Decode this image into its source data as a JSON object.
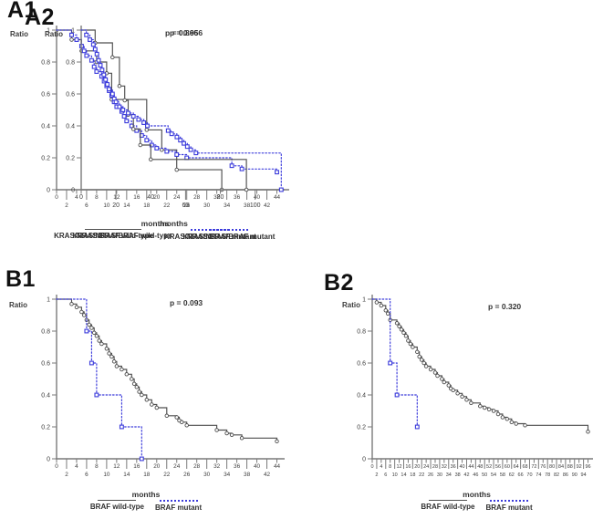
{
  "colors": {
    "wild_type": "#4f4f4f",
    "mutant": "#3b3bdb",
    "axis": "#7a7a7a",
    "text": "#3c3c3c"
  },
  "chart_data": [
    {
      "panel": "A1",
      "type": "line",
      "subtype": "kaplan-meier-step",
      "p_value": "p = 0.866",
      "xlabel": "months",
      "ylabel": "Ratio",
      "xlim": [
        0,
        45
      ],
      "ylim": [
        0,
        1
      ],
      "xticks": [
        0,
        2,
        4,
        6,
        8,
        10,
        12,
        14,
        16,
        18,
        20,
        22,
        24,
        26,
        28,
        30,
        32,
        34,
        36,
        38,
        40,
        42,
        44
      ],
      "yticks": [
        1,
        0.8,
        0.6,
        0.4,
        0.2,
        0
      ],
      "grid": false,
      "legend_position": "bottom",
      "series": [
        {
          "name": "KRAS/NRAS/BRAF wild-type",
          "line": "solid",
          "marker": "circle",
          "color": "wild_type",
          "points": [
            [
              0,
              1
            ],
            [
              3,
              0.94
            ],
            [
              5,
              0.87
            ],
            [
              8,
              0.8
            ],
            [
              10,
              0.73
            ],
            [
              11,
              0.565
            ],
            [
              18,
              0.375
            ],
            [
              21,
              0.25
            ],
            [
              24,
              0.125
            ],
            [
              33,
              0
            ]
          ]
        },
        {
          "name": "KRAS/NRAS/BRAF mutant",
          "line": "dotted",
          "marker": "square",
          "color": "mutant",
          "points": [
            [
              0,
              1
            ],
            [
              3,
              0.97
            ],
            [
              4,
              0.94
            ],
            [
              5,
              0.9
            ],
            [
              5.5,
              0.87
            ],
            [
              6,
              0.84
            ],
            [
              7,
              0.81
            ],
            [
              7.5,
              0.77
            ],
            [
              8,
              0.74
            ],
            [
              9,
              0.71
            ],
            [
              9.5,
              0.68
            ],
            [
              10,
              0.65
            ],
            [
              10.5,
              0.62
            ],
            [
              11,
              0.59
            ],
            [
              11.5,
              0.55
            ],
            [
              12,
              0.52
            ],
            [
              13,
              0.49
            ],
            [
              13.5,
              0.46
            ],
            [
              14,
              0.43
            ],
            [
              15,
              0.4
            ],
            [
              16,
              0.37
            ],
            [
              17,
              0.34
            ],
            [
              18,
              0.31
            ],
            [
              19,
              0.28
            ],
            [
              20,
              0.26
            ],
            [
              22,
              0.24
            ],
            [
              24,
              0.22
            ],
            [
              26,
              0.2
            ],
            [
              35,
              0.15
            ],
            [
              37,
              0.13
            ],
            [
              44,
              0.11
            ]
          ]
        }
      ]
    },
    {
      "panel": "A2",
      "type": "line",
      "subtype": "kaplan-meier-step",
      "p_value": "p = 0.956",
      "xlabel": "months",
      "ylabel": "Ratio",
      "xlim": [
        0,
        118
      ],
      "ylim": [
        0,
        1
      ],
      "xticks": [
        0,
        20,
        40,
        60,
        80,
        100
      ],
      "yticks": [
        1,
        0.8,
        0.6,
        0.4,
        0.2,
        0
      ],
      "grid": false,
      "legend_position": "bottom",
      "series": [
        {
          "name": "KRAS/NRAS/BRAF wild-type",
          "line": "solid",
          "marker": "circle",
          "color": "wild_type",
          "points": [
            [
              0,
              1
            ],
            [
              8,
              0.92
            ],
            [
              18,
              0.83
            ],
            [
              22,
              0.65
            ],
            [
              25,
              0.56
            ],
            [
              27,
              0.47
            ],
            [
              30,
              0.38
            ],
            [
              34,
              0.28
            ],
            [
              40,
              0.19
            ],
            [
              95,
              0
            ]
          ]
        },
        {
          "name": "KRAS/NRAS/BRAF mutant",
          "line": "dotted",
          "marker": "square",
          "color": "mutant",
          "points": [
            [
              0,
              1
            ],
            [
              3,
              0.97
            ],
            [
              5,
              0.94
            ],
            [
              7,
              0.91
            ],
            [
              8,
              0.88
            ],
            [
              9,
              0.85
            ],
            [
              10,
              0.81
            ],
            [
              11,
              0.78
            ],
            [
              12,
              0.75
            ],
            [
              13,
              0.72
            ],
            [
              14,
              0.69
            ],
            [
              15,
              0.66
            ],
            [
              16,
              0.63
            ],
            [
              18,
              0.6
            ],
            [
              19,
              0.57
            ],
            [
              20,
              0.55
            ],
            [
              22,
              0.52
            ],
            [
              24,
              0.5
            ],
            [
              27,
              0.48
            ],
            [
              30,
              0.46
            ],
            [
              33,
              0.44
            ],
            [
              36,
              0.42
            ],
            [
              38,
              0.4
            ],
            [
              50,
              0.37
            ],
            [
              52,
              0.35
            ],
            [
              55,
              0.33
            ],
            [
              57,
              0.31
            ],
            [
              59,
              0.29
            ],
            [
              61,
              0.27
            ],
            [
              63,
              0.25
            ],
            [
              66,
              0.23
            ],
            [
              115,
              0
            ]
          ]
        }
      ]
    },
    {
      "panel": "B1",
      "type": "line",
      "subtype": "kaplan-meier-step",
      "p_value": "p = 0.093",
      "xlabel": "months",
      "ylabel": "Ratio",
      "xlim": [
        0,
        45
      ],
      "ylim": [
        0,
        1
      ],
      "xticks": [
        0,
        2,
        4,
        6,
        8,
        10,
        12,
        14,
        16,
        18,
        20,
        22,
        24,
        26,
        28,
        30,
        32,
        34,
        36,
        38,
        40,
        42,
        44
      ],
      "yticks": [
        1,
        0.8,
        0.6,
        0.4,
        0.2,
        0
      ],
      "grid": false,
      "legend_position": "bottom",
      "series": [
        {
          "name": "BRAF wild-type",
          "line": "solid",
          "marker": "circle",
          "color": "wild_type",
          "points": [
            [
              0,
              1
            ],
            [
              3,
              0.97
            ],
            [
              4,
              0.95
            ],
            [
              5,
              0.92
            ],
            [
              5.5,
              0.9
            ],
            [
              6,
              0.87
            ],
            [
              6.5,
              0.84
            ],
            [
              7,
              0.82
            ],
            [
              7.5,
              0.79
            ],
            [
              8,
              0.77
            ],
            [
              8.5,
              0.74
            ],
            [
              9,
              0.72
            ],
            [
              10,
              0.69
            ],
            [
              10.5,
              0.66
            ],
            [
              11,
              0.64
            ],
            [
              11.5,
              0.61
            ],
            [
              12,
              0.58
            ],
            [
              13,
              0.56
            ],
            [
              14,
              0.53
            ],
            [
              15,
              0.5
            ],
            [
              15.5,
              0.47
            ],
            [
              16,
              0.45
            ],
            [
              16.5,
              0.42
            ],
            [
              17,
              0.4
            ],
            [
              18,
              0.37
            ],
            [
              19,
              0.34
            ],
            [
              20,
              0.32
            ],
            [
              22,
              0.27
            ],
            [
              24,
              0.26
            ],
            [
              24.5,
              0.24
            ],
            [
              25,
              0.23
            ],
            [
              26,
              0.21
            ],
            [
              32,
              0.18
            ],
            [
              34,
              0.16
            ],
            [
              35,
              0.15
            ],
            [
              37,
              0.13
            ],
            [
              44,
              0.11
            ]
          ]
        },
        {
          "name": "BRAF mutant",
          "line": "dotted",
          "marker": "square",
          "color": "mutant",
          "points": [
            [
              0,
              1
            ],
            [
              6,
              0.8
            ],
            [
              7,
              0.6
            ],
            [
              8,
              0.4
            ],
            [
              13,
              0.2
            ],
            [
              17,
              0
            ]
          ]
        }
      ]
    },
    {
      "panel": "B2",
      "type": "line",
      "subtype": "kaplan-meier-step",
      "p_value": "p = 0.320",
      "xlabel": "months",
      "ylabel": "Ratio",
      "xlim": [
        0,
        97
      ],
      "ylim": [
        0,
        1
      ],
      "xticks": [
        0,
        2,
        4,
        6,
        8,
        10,
        12,
        14,
        16,
        18,
        20,
        22,
        24,
        26,
        28,
        30,
        32,
        34,
        36,
        38,
        40,
        42,
        44,
        46,
        48,
        50,
        52,
        54,
        56,
        58,
        60,
        62,
        64,
        66,
        68,
        70,
        72,
        74,
        76,
        78,
        80,
        82,
        84,
        86,
        88,
        90,
        92,
        94,
        96
      ],
      "yticks": [
        1,
        0.8,
        0.6,
        0.4,
        0.2,
        0
      ],
      "grid": false,
      "legend_position": "bottom",
      "series": [
        {
          "name": "BRAF wild-type",
          "line": "solid",
          "marker": "circle",
          "color": "wild_type",
          "points": [
            [
              0,
              1
            ],
            [
              2,
              0.98
            ],
            [
              4,
              0.96
            ],
            [
              6,
              0.93
            ],
            [
              7,
              0.91
            ],
            [
              8,
              0.87
            ],
            [
              11,
              0.85
            ],
            [
              12,
              0.83
            ],
            [
              13,
              0.81
            ],
            [
              14,
              0.79
            ],
            [
              15,
              0.77
            ],
            [
              16,
              0.74
            ],
            [
              17,
              0.72
            ],
            [
              18,
              0.7
            ],
            [
              20,
              0.67
            ],
            [
              21,
              0.64
            ],
            [
              22,
              0.62
            ],
            [
              23,
              0.6
            ],
            [
              24,
              0.58
            ],
            [
              26,
              0.56
            ],
            [
              28,
              0.54
            ],
            [
              29,
              0.52
            ],
            [
              31,
              0.5
            ],
            [
              32,
              0.48
            ],
            [
              34,
              0.46
            ],
            [
              35,
              0.44
            ],
            [
              36,
              0.43
            ],
            [
              38,
              0.41
            ],
            [
              40,
              0.39
            ],
            [
              42,
              0.37
            ],
            [
              44,
              0.35
            ],
            [
              48,
              0.33
            ],
            [
              50,
              0.32
            ],
            [
              52,
              0.31
            ],
            [
              54,
              0.3
            ],
            [
              56,
              0.28
            ],
            [
              58,
              0.26
            ],
            [
              60,
              0.25
            ],
            [
              62,
              0.23
            ],
            [
              64,
              0.22
            ],
            [
              68,
              0.21
            ],
            [
              96,
              0.17
            ]
          ]
        },
        {
          "name": "BRAF mutant",
          "line": "dotted",
          "marker": "square",
          "color": "mutant",
          "points": [
            [
              0,
              1
            ],
            [
              8,
              0.6
            ],
            [
              11,
              0.4
            ],
            [
              20,
              0.2
            ]
          ]
        }
      ]
    }
  ]
}
